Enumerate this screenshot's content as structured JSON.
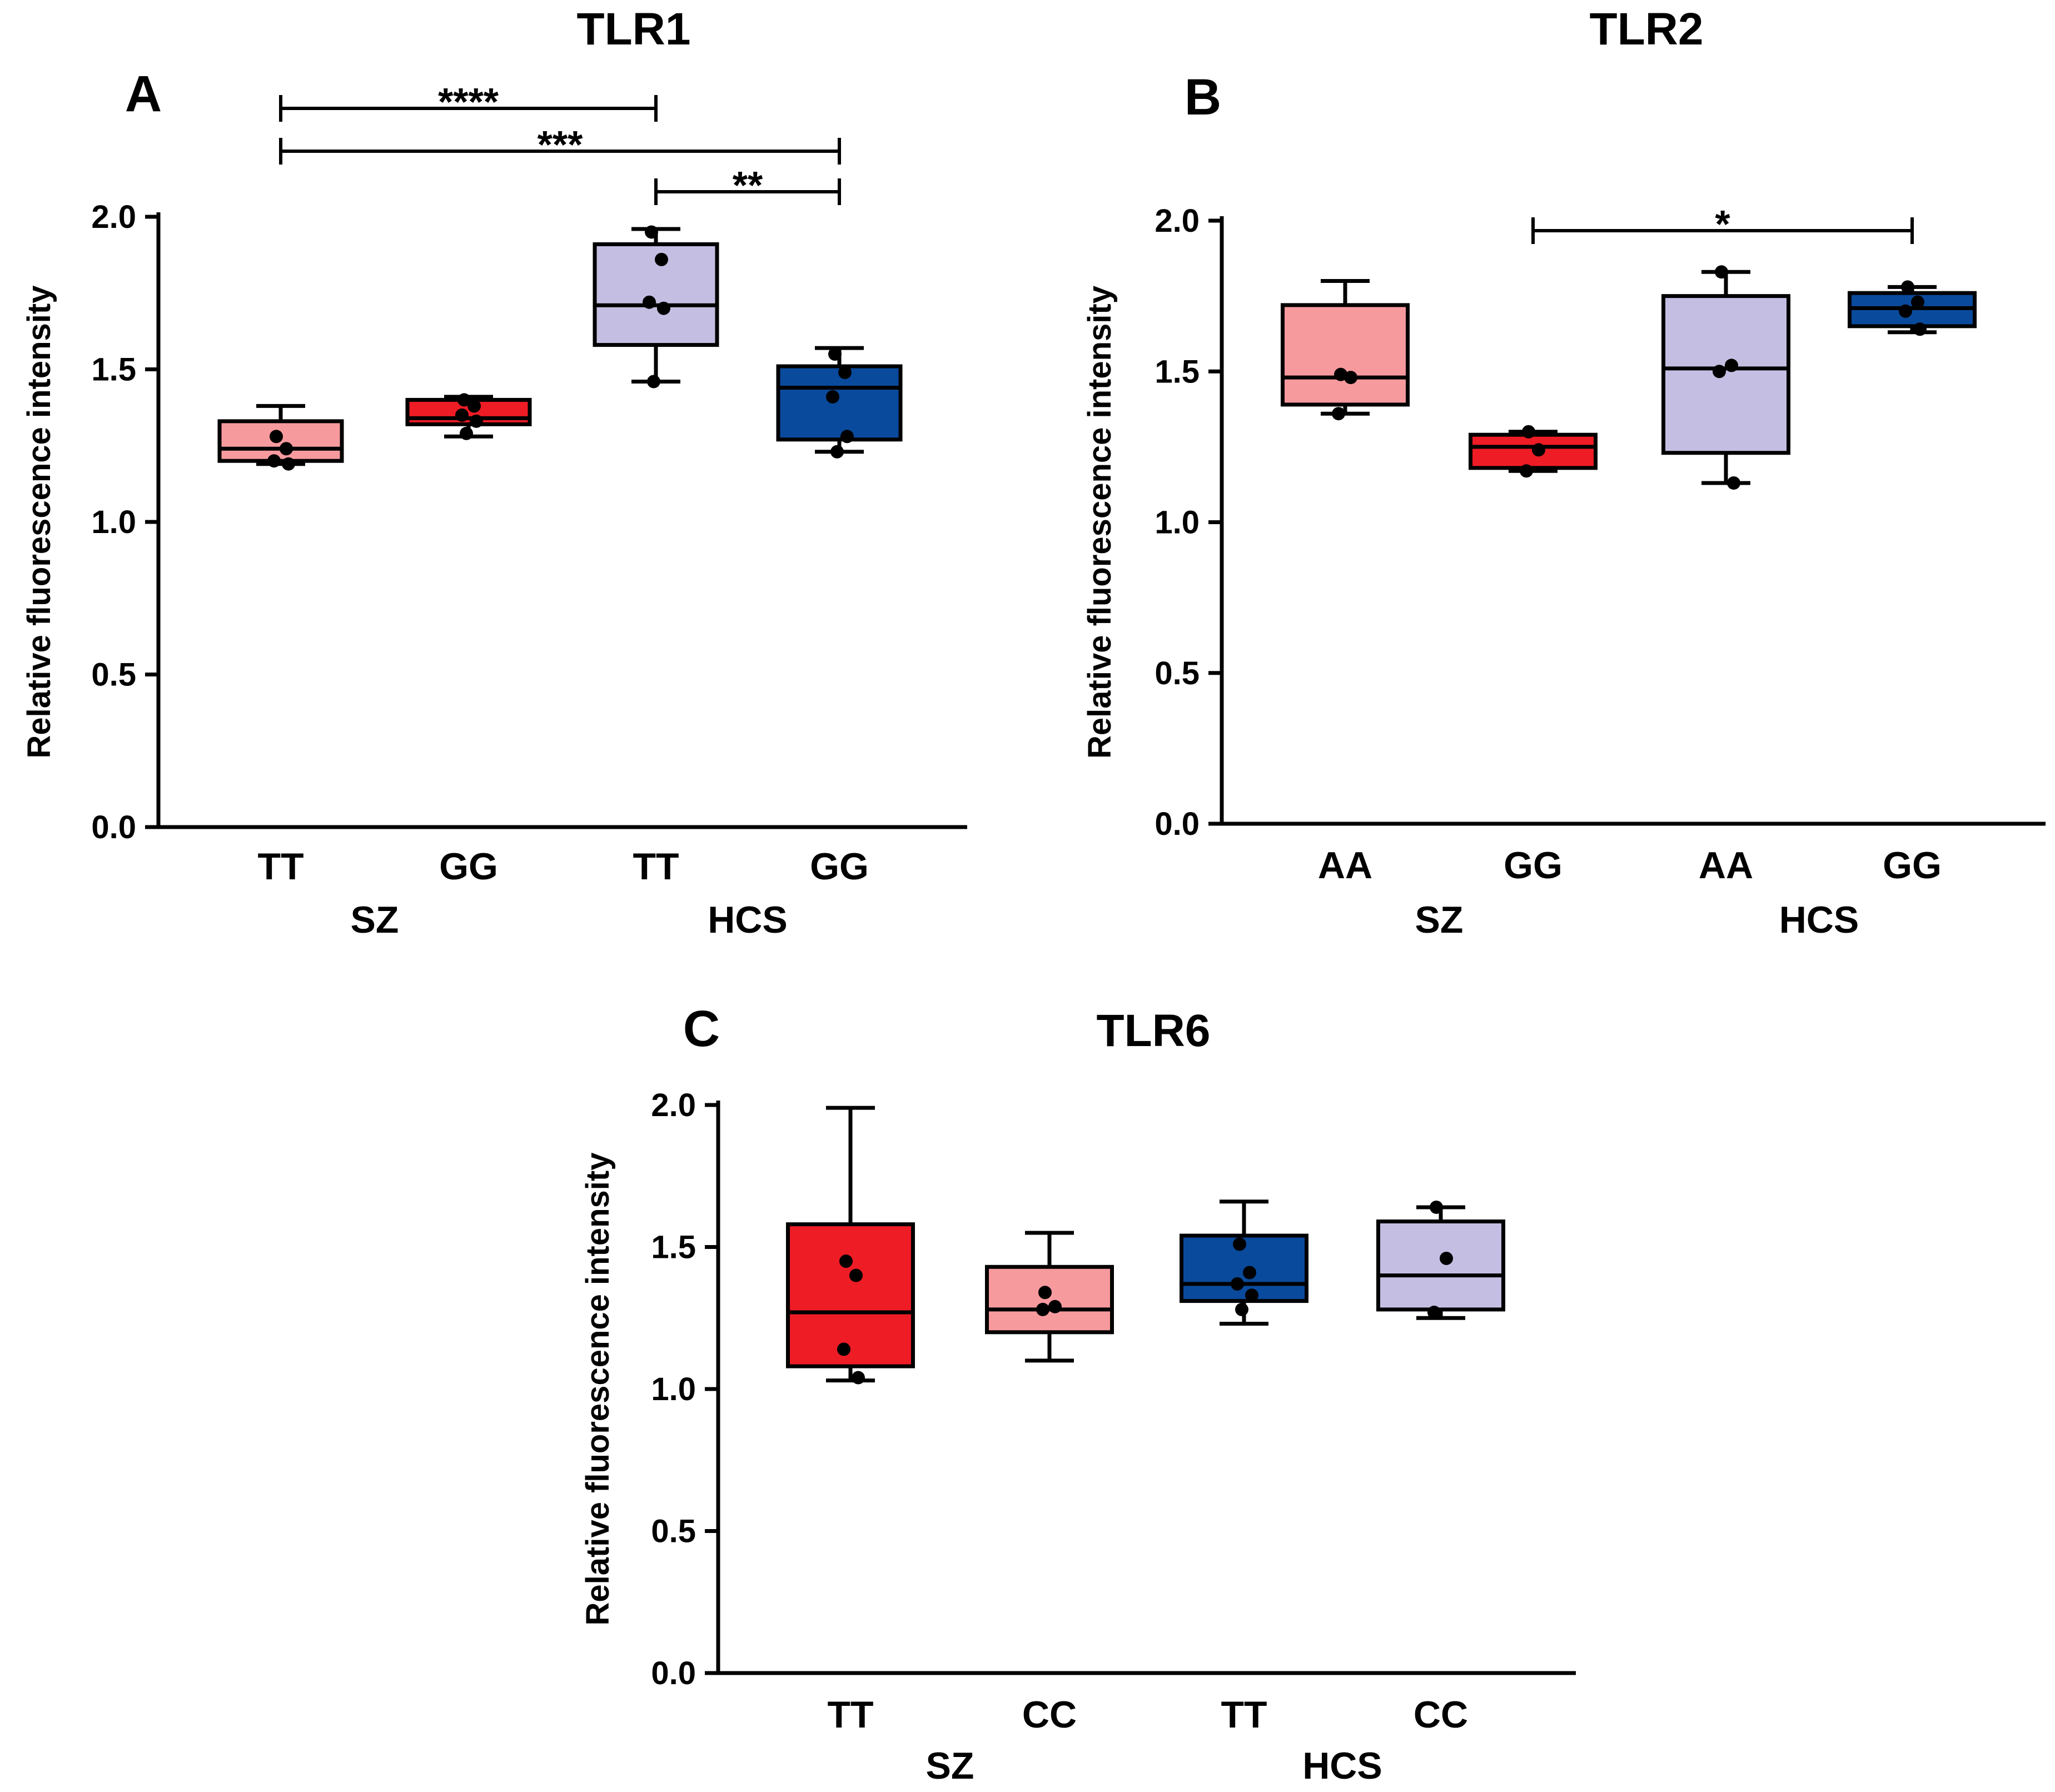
{
  "figure": {
    "panels": [
      {
        "letter": "A",
        "title": "TLR1"
      },
      {
        "letter": "B",
        "title": "TLR2"
      },
      {
        "letter": "C",
        "title": "TLR6"
      }
    ]
  },
  "colors": {
    "light_red": "#f79a9e",
    "red": "#ee1c25",
    "lavender": "#c4bfe2",
    "navy": "#0a4a9c",
    "black": "#000000"
  },
  "chart_data": [
    {
      "type": "box",
      "panel": "A",
      "title": "TLR1",
      "ylabel": "Relative fluorescence intensity",
      "ylim": [
        0,
        2.0
      ],
      "yticks": [
        "0.0",
        "0.5",
        "1.0",
        "1.5",
        "2.0"
      ],
      "groups": [
        {
          "name": "SZ",
          "members": [
            0,
            1
          ]
        },
        {
          "name": "HCS",
          "members": [
            2,
            3
          ]
        }
      ],
      "boxes": [
        {
          "category": "TT",
          "group": "SZ",
          "color": "#f79a9e",
          "min": 1.19,
          "q1": 1.2,
          "median": 1.24,
          "q3": 1.33,
          "max": 1.38,
          "points": [
            1.28,
            1.24,
            1.2,
            1.19
          ]
        },
        {
          "category": "GG",
          "group": "SZ",
          "color": "#ee1c25",
          "min": 1.28,
          "q1": 1.32,
          "median": 1.34,
          "q3": 1.4,
          "max": 1.41,
          "points": [
            1.4,
            1.38,
            1.35,
            1.33,
            1.29
          ]
        },
        {
          "category": "TT",
          "group": "HCS",
          "color": "#c4bfe2",
          "min": 1.46,
          "q1": 1.58,
          "median": 1.71,
          "q3": 1.91,
          "max": 1.96,
          "points": [
            1.95,
            1.86,
            1.72,
            1.7,
            1.46
          ]
        },
        {
          "category": "GG",
          "group": "HCS",
          "color": "#0a4a9c",
          "min": 1.23,
          "q1": 1.27,
          "median": 1.44,
          "q3": 1.51,
          "max": 1.57,
          "points": [
            1.55,
            1.49,
            1.41,
            1.28,
            1.23
          ]
        }
      ],
      "significance": [
        {
          "from": 0,
          "to": 2,
          "label": "****"
        },
        {
          "from": 0,
          "to": 3,
          "label": "***"
        },
        {
          "from": 2,
          "to": 3,
          "label": "**"
        }
      ]
    },
    {
      "type": "box",
      "panel": "B",
      "title": "TLR2",
      "ylabel": "Relative fluorescence intensity",
      "ylim": [
        0,
        2.0
      ],
      "yticks": [
        "0.0",
        "0.5",
        "1.0",
        "1.5",
        "2.0"
      ],
      "groups": [
        {
          "name": "SZ",
          "members": [
            0,
            1
          ]
        },
        {
          "name": "HCS",
          "members": [
            2,
            3
          ]
        }
      ],
      "boxes": [
        {
          "category": "AA",
          "group": "SZ",
          "color": "#f79a9e",
          "min": 1.36,
          "q1": 1.39,
          "median": 1.48,
          "q3": 1.72,
          "max": 1.8,
          "points": [
            1.49,
            1.48,
            1.36
          ]
        },
        {
          "category": "GG",
          "group": "SZ",
          "color": "#ee1c25",
          "min": 1.17,
          "q1": 1.18,
          "median": 1.25,
          "q3": 1.29,
          "max": 1.3,
          "points": [
            1.3,
            1.24,
            1.17
          ]
        },
        {
          "category": "AA",
          "group": "HCS",
          "color": "#c4bfe2",
          "min": 1.13,
          "q1": 1.23,
          "median": 1.51,
          "q3": 1.75,
          "max": 1.83,
          "points": [
            1.83,
            1.52,
            1.5,
            1.13
          ]
        },
        {
          "category": "GG",
          "group": "HCS",
          "color": "#0a4a9c",
          "min": 1.63,
          "q1": 1.65,
          "median": 1.71,
          "q3": 1.76,
          "max": 1.78,
          "points": [
            1.78,
            1.73,
            1.7,
            1.64
          ]
        }
      ],
      "significance": [
        {
          "from": 1,
          "to": 3,
          "label": "*"
        }
      ]
    },
    {
      "type": "box",
      "panel": "C",
      "title": "TLR6",
      "ylabel": "Relative fluorescence intensity",
      "ylim": [
        0,
        2.0
      ],
      "yticks": [
        "0.0",
        "0.5",
        "1.0",
        "1.5",
        "2.0"
      ],
      "groups": [
        {
          "name": "SZ",
          "members": [
            0,
            1
          ]
        },
        {
          "name": "HCS",
          "members": [
            2,
            3
          ]
        }
      ],
      "boxes": [
        {
          "category": "TT",
          "group": "SZ",
          "color": "#ee1c25",
          "min": 1.03,
          "q1": 1.08,
          "median": 1.27,
          "q3": 1.58,
          "max": 1.99,
          "points": [
            1.45,
            1.4,
            1.14,
            1.04
          ]
        },
        {
          "category": "CC",
          "group": "SZ",
          "color": "#f79a9e",
          "min": 1.1,
          "q1": 1.2,
          "median": 1.28,
          "q3": 1.43,
          "max": 1.55,
          "points": [
            1.34,
            1.29,
            1.28
          ]
        },
        {
          "category": "TT",
          "group": "HCS",
          "color": "#0a4a9c",
          "min": 1.23,
          "q1": 1.31,
          "median": 1.37,
          "q3": 1.54,
          "max": 1.66,
          "points": [
            1.51,
            1.41,
            1.37,
            1.33,
            1.28
          ]
        },
        {
          "category": "CC",
          "group": "HCS",
          "color": "#c4bfe2",
          "min": 1.25,
          "q1": 1.28,
          "median": 1.4,
          "q3": 1.59,
          "max": 1.64,
          "points": [
            1.64,
            1.46,
            1.27
          ]
        }
      ],
      "significance": []
    }
  ]
}
